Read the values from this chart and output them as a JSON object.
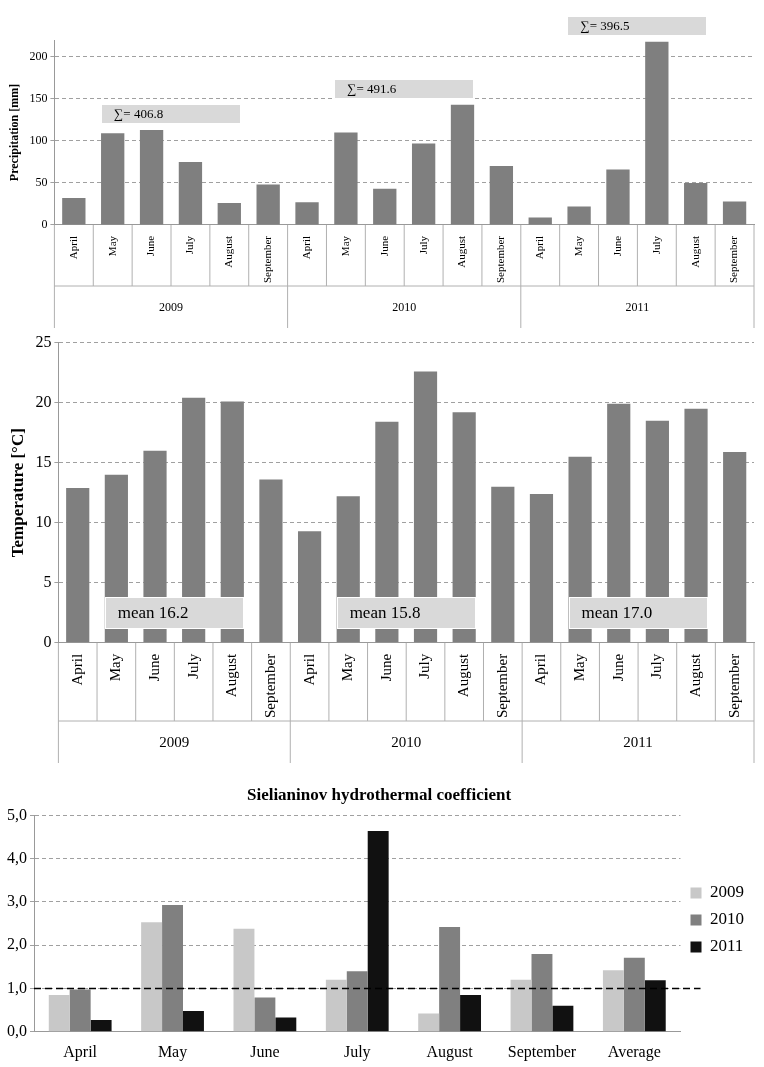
{
  "chart_data": [
    {
      "type": "bar",
      "ylabel": "Precipitation [mm]",
      "categories": [
        "April",
        "May",
        "June",
        "July",
        "August",
        "September",
        "April",
        "May",
        "June",
        "July",
        "August",
        "September",
        "April",
        "May",
        "June",
        "July",
        "August",
        "September"
      ],
      "series": [
        {
          "color": "#7f7f7f",
          "values": [
            32,
            109,
            113,
            75,
            26,
            48,
            27,
            110,
            43,
            97,
            143,
            70,
            9,
            22,
            66,
            218,
            50,
            28
          ]
        }
      ],
      "ylim": [
        0,
        220
      ],
      "yticks": [
        0,
        50,
        100,
        150,
        200
      ],
      "grid": "y",
      "legend": false,
      "annotations": [
        "∑= 406.8",
        "∑= 491.6",
        "∑= 396.5",
        "2009",
        "2010",
        "2011"
      ]
    },
    {
      "type": "bar",
      "ylabel": "Temperature [°C]",
      "categories": [
        "April",
        "May",
        "June",
        "July",
        "August",
        "September",
        "April",
        "May",
        "June",
        "July",
        "August",
        "September",
        "April",
        "May",
        "June",
        "July",
        "August",
        "September"
      ],
      "series": [
        {
          "color": "#7f7f7f",
          "values": [
            12.9,
            14.0,
            16.0,
            20.4,
            20.1,
            13.6,
            9.3,
            12.2,
            18.4,
            22.6,
            19.2,
            13.0,
            12.4,
            15.5,
            19.9,
            18.5,
            19.5,
            15.9
          ]
        }
      ],
      "ylim": [
        0,
        25
      ],
      "yticks": [
        0,
        5,
        10,
        15,
        20,
        25
      ],
      "grid": "y",
      "legend": false,
      "annotations": [
        "mean  16.2",
        "mean  15.8",
        "mean  17.0",
        "2009",
        "2010",
        "2011"
      ]
    },
    {
      "type": "bar",
      "title": "Sielianinov hydrothermal coefficient",
      "categories": [
        "April",
        "May",
        "June",
        "July",
        "August",
        "September",
        "Average"
      ],
      "series": [
        {
          "name": "2009",
          "color": "#c8c8c8",
          "values": [
            0.85,
            2.53,
            2.38,
            1.2,
            0.42,
            1.2,
            1.42
          ]
        },
        {
          "name": "2010",
          "color": "#808080",
          "values": [
            0.98,
            2.93,
            0.79,
            1.4,
            2.42,
            1.8,
            1.71
          ]
        },
        {
          "name": "2011",
          "color": "#111111",
          "values": [
            0.27,
            0.48,
            0.33,
            4.64,
            0.85,
            0.6,
            1.19
          ]
        }
      ],
      "ylim": [
        0,
        5
      ],
      "yticks": [
        {
          "value": 0,
          "label": "0,0"
        },
        {
          "value": 1,
          "label": "1,0"
        },
        {
          "value": 2,
          "label": "2,0"
        },
        {
          "value": 3,
          "label": "3,0"
        },
        {
          "value": 4,
          "label": "4,0"
        },
        {
          "value": 5,
          "label": "5,0"
        }
      ],
      "grid": "y",
      "legend": "right",
      "ref_lines": [
        {
          "axis": "y",
          "value": 1,
          "color": "#000000",
          "line_style": "dashed"
        }
      ]
    }
  ]
}
